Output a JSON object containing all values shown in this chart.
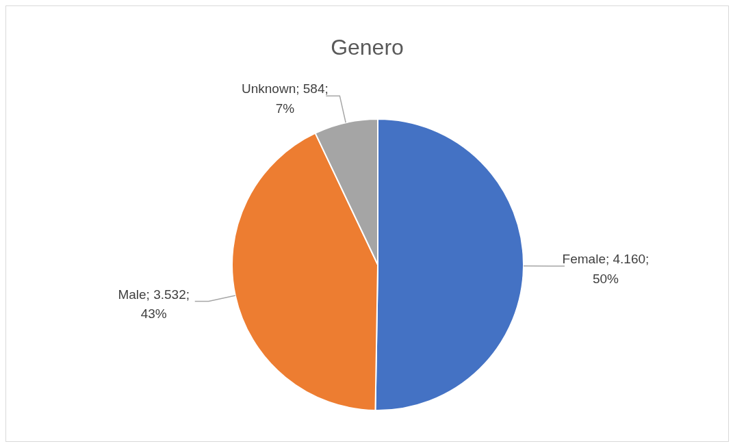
{
  "chart_data": {
    "type": "pie",
    "title": "Genero",
    "categories": [
      "Female",
      "Male",
      "Unknown"
    ],
    "values": [
      4160,
      3532,
      584
    ],
    "colors": [
      "#4472c4",
      "#ed7d31",
      "#a5a5a5"
    ],
    "value_labels": [
      "4.160; 50%",
      "3.532; 43%",
      "584; 7%"
    ],
    "legend": false
  }
}
